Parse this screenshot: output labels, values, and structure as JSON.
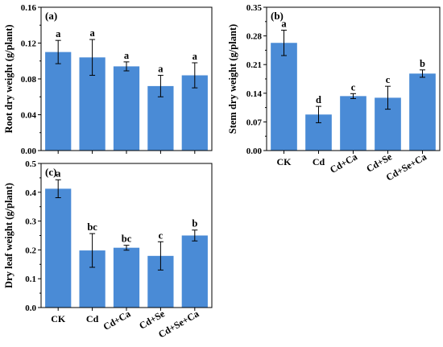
{
  "chart_data": [
    {
      "type": "bar",
      "panel_label": "(a)",
      "ylabel": "Root dry weight (g/plant)",
      "categories": [
        "CK",
        "Cd",
        "Cd+Ca",
        "Cd+Se",
        "Cd+Se+Ca"
      ],
      "show_category_labels": false,
      "values": [
        0.11,
        0.104,
        0.094,
        0.072,
        0.084
      ],
      "errors": [
        0.013,
        0.02,
        0.005,
        0.012,
        0.014
      ],
      "significance": [
        "a",
        "a",
        "a",
        "a",
        "a"
      ],
      "ylim": [
        0,
        0.16
      ],
      "yticks": [
        "0.00",
        "0.04",
        "0.08",
        "0.12",
        "0.16"
      ],
      "bar_color": "#4a8bd6"
    },
    {
      "type": "bar",
      "panel_label": "(b)",
      "ylabel": "Stem dry weight (g/plant)",
      "categories": [
        "CK",
        "Cd",
        "Cd+Ca",
        "Cd+Se",
        "Cd+Se+Ca"
      ],
      "show_category_labels": true,
      "values": [
        0.263,
        0.088,
        0.133,
        0.129,
        0.188
      ],
      "errors": [
        0.031,
        0.02,
        0.006,
        0.028,
        0.009
      ],
      "significance": [
        "a",
        "d",
        "c",
        "c",
        "b"
      ],
      "ylim": [
        0,
        0.35
      ],
      "yticks": [
        "0.00",
        "0.07",
        "0.14",
        "0.21",
        "0.28",
        "0.35"
      ],
      "bar_color": "#4a8bd6"
    },
    {
      "type": "bar",
      "panel_label": "(c)",
      "ylabel": "Dry leaf weight (g/plant)",
      "categories": [
        "CK",
        "Cd",
        "Cd+Ca",
        "Cd+Se",
        "Cd+Se+Ca"
      ],
      "show_category_labels": true,
      "values": [
        0.437,
        0.21,
        0.22,
        0.19,
        0.265
      ],
      "errors": [
        0.033,
        0.062,
        0.009,
        0.052,
        0.02
      ],
      "significance": [
        "a",
        "bc",
        "bc",
        "c",
        "b"
      ],
      "ylim": [
        0,
        0.53
      ],
      "yticks": [
        "0.0",
        "0.1",
        "0.2",
        "0.3",
        "0.4",
        "0.5"
      ],
      "bar_color": "#4a8bd6"
    }
  ]
}
